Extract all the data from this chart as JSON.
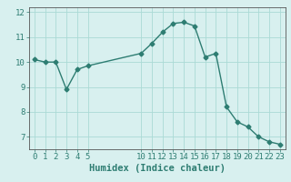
{
  "x": [
    0,
    1,
    2,
    3,
    4,
    5,
    10,
    11,
    12,
    13,
    14,
    15,
    16,
    17,
    18,
    19,
    20,
    21,
    22,
    23
  ],
  "y": [
    10.1,
    10.0,
    10.0,
    8.9,
    9.7,
    9.85,
    10.35,
    10.75,
    11.2,
    11.55,
    11.6,
    11.45,
    10.2,
    10.35,
    8.2,
    7.6,
    7.4,
    7.0,
    6.8,
    6.7
  ],
  "line_color": "#2e7d72",
  "marker": "D",
  "marker_size": 2.5,
  "background_color": "#d8f0ef",
  "grid_color": "#aadad5",
  "xlabel": "Humidex (Indice chaleur)",
  "xlim": [
    -0.5,
    23.5
  ],
  "ylim": [
    6.5,
    12.2
  ],
  "yticks": [
    7,
    8,
    9,
    10,
    11,
    12
  ],
  "xticks": [
    0,
    1,
    2,
    3,
    4,
    5,
    10,
    11,
    12,
    13,
    14,
    15,
    16,
    17,
    18,
    19,
    20,
    21,
    22,
    23
  ],
  "xlabel_fontsize": 7.5,
  "tick_fontsize": 6.5,
  "line_width": 1.0,
  "spine_color": "#555555"
}
